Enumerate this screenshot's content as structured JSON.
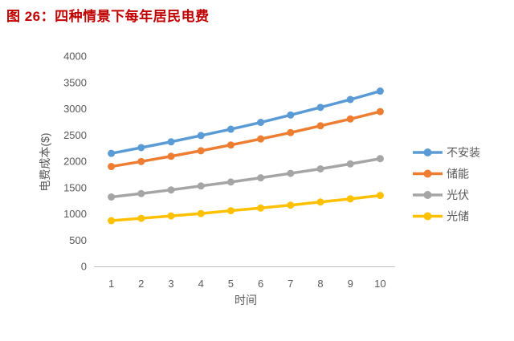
{
  "title": {
    "text": "图 26：四种情景下每年居民电费",
    "color": "#C00000"
  },
  "chart_data": {
    "type": "line",
    "x": [
      1,
      2,
      3,
      4,
      5,
      6,
      7,
      8,
      9,
      10
    ],
    "xlabel": "时间",
    "ylabel": "电费成本($)",
    "ylim": [
      0,
      4000
    ],
    "ytick_step": 500,
    "grid": false,
    "legend_position": "right",
    "axis_text_color": "#595959",
    "axis_line_color": "#BFBFBF",
    "series": [
      {
        "name": "不安装",
        "color": "#5B9BD5",
        "values": [
          2150,
          2260,
          2370,
          2490,
          2610,
          2740,
          2880,
          3025,
          3175,
          3335
        ]
      },
      {
        "name": "储能",
        "color": "#ED7D31",
        "values": [
          1900,
          1995,
          2095,
          2200,
          2310,
          2425,
          2545,
          2675,
          2805,
          2945
        ]
      },
      {
        "name": "光伏",
        "color": "#A5A5A5",
        "values": [
          1320,
          1385,
          1455,
          1530,
          1605,
          1685,
          1770,
          1855,
          1950,
          2050
        ]
      },
      {
        "name": "光储",
        "color": "#FFC000",
        "values": [
          870,
          915,
          960,
          1005,
          1060,
          1110,
          1165,
          1225,
          1285,
          1350
        ]
      }
    ]
  }
}
